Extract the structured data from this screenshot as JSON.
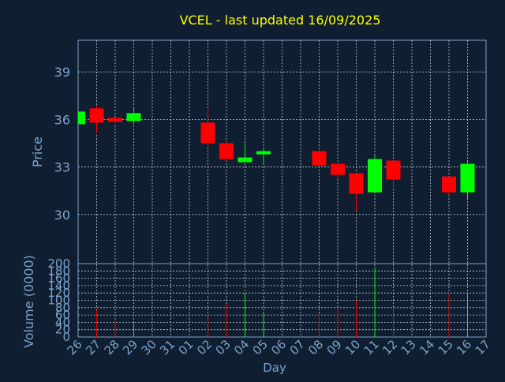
{
  "chart_data": {
    "type": "candlestick",
    "title": "VCEL - last updated 16/09/2025",
    "title_color": "#ffff00",
    "background": "#0f1e30",
    "axis_color": "#7da3cc",
    "bull_color": "#00ff00",
    "bear_color": "#ff0000",
    "xlabel": "Day",
    "x_ticks": [
      "26",
      "27",
      "28",
      "29",
      "30",
      "31",
      "01",
      "02",
      "03",
      "04",
      "05",
      "06",
      "07",
      "08",
      "09",
      "10",
      "11",
      "12",
      "13",
      "14",
      "15",
      "16",
      "17"
    ],
    "price_panel": {
      "ylabel": "Price",
      "ylim": [
        26.9,
        41.0
      ],
      "y_ticks": [
        "30",
        "33",
        "36",
        "39"
      ],
      "y_tick_values": [
        30,
        33,
        36,
        39
      ],
      "grid": true
    },
    "volume_panel": {
      "ylabel": "Volume (0000)",
      "ylim": [
        0,
        200
      ],
      "y_ticks": [
        "0",
        "20",
        "40",
        "60",
        "80",
        "100",
        "120",
        "140",
        "160",
        "180",
        "200"
      ],
      "y_tick_values": [
        0,
        20,
        40,
        60,
        80,
        100,
        120,
        140,
        160,
        180,
        200
      ],
      "grid": true
    },
    "candles": [
      {
        "day": "26",
        "open": 35.7,
        "close": 36.5,
        "high": 36.5,
        "low": 35.7,
        "volume": 0
      },
      {
        "day": "27",
        "open": 36.7,
        "close": 35.8,
        "high": 36.9,
        "low": 35.1,
        "volume": 75
      },
      {
        "day": "28",
        "open": 36.1,
        "close": 35.85,
        "high": 36.1,
        "low": 35.7,
        "volume": 42
      },
      {
        "day": "29",
        "open": 35.9,
        "close": 36.4,
        "high": 36.8,
        "low": 35.7,
        "volume": 38
      },
      {
        "day": "02",
        "open": 35.8,
        "close": 34.5,
        "high": 36.6,
        "low": 34.3,
        "volume": 55
      },
      {
        "day": "03",
        "open": 34.5,
        "close": 33.5,
        "high": 34.6,
        "low": 33.4,
        "volume": 90
      },
      {
        "day": "04",
        "open": 33.3,
        "close": 33.6,
        "high": 34.5,
        "low": 33.3,
        "volume": 118
      },
      {
        "day": "05",
        "open": 33.8,
        "close": 34.0,
        "high": 34.2,
        "low": 33.2,
        "volume": 65
      },
      {
        "day": "08",
        "open": 34.0,
        "close": 33.1,
        "high": 34.1,
        "low": 33.0,
        "volume": 62
      },
      {
        "day": "09",
        "open": 33.2,
        "close": 32.5,
        "high": 33.2,
        "low": 32.2,
        "volume": 78
      },
      {
        "day": "10",
        "open": 32.6,
        "close": 31.3,
        "high": 32.6,
        "low": 30.2,
        "volume": 100
      },
      {
        "day": "11",
        "open": 31.4,
        "close": 33.5,
        "high": 33.7,
        "low": 31.4,
        "volume": 190
      },
      {
        "day": "12",
        "open": 33.4,
        "close": 32.2,
        "high": 33.4,
        "low": 31.7,
        "volume": 80
      },
      {
        "day": "15",
        "open": 32.4,
        "close": 31.4,
        "high": 32.4,
        "low": 31.2,
        "volume": 120
      },
      {
        "day": "16",
        "open": 31.4,
        "close": 33.2,
        "high": 33.3,
        "low": 31.0,
        "volume": 115
      }
    ]
  }
}
